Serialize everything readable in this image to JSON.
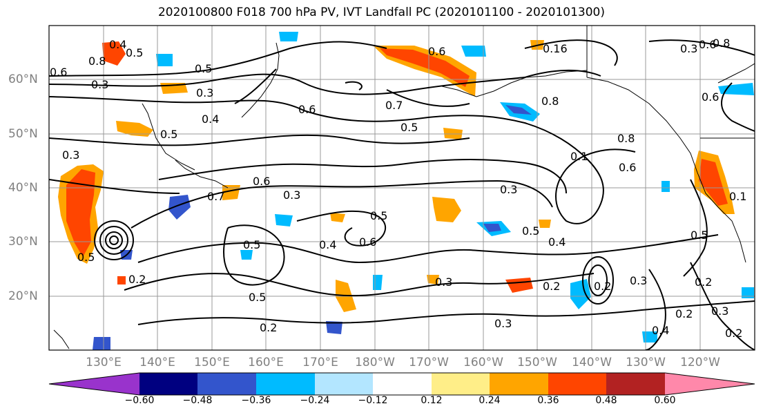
{
  "title": "2020100800 F018 700 hPa PV, IVT Landfall PC (2020101100 - 2020101300)",
  "lat_labels": [
    "60°N",
    "50°N",
    "40°N",
    "30°N",
    "20°N"
  ],
  "lon_labels": [
    "130°E",
    "140°E",
    "150°E",
    "160°E",
    "170°E",
    "180°W",
    "170°W",
    "160°W",
    "150°W",
    "140°W",
    "130°W",
    "120°W"
  ],
  "colorbar": {
    "colors": [
      "#9933cc",
      "#000080",
      "#3355cc",
      "#00bbff",
      "#b3e6ff",
      "#ffffff",
      "#ffee88",
      "#ffa500",
      "#ff4500",
      "#b22222",
      "#ff88aa"
    ],
    "ticks": [
      "−0.60",
      "−0.48",
      "−0.36",
      "−0.24",
      "−0.12",
      "0.12",
      "0.24",
      "0.36",
      "0.48",
      "0.60"
    ]
  },
  "contour_labels": [
    "0.4",
    "0.5",
    "0.6",
    "0.3",
    "0.8",
    "0.5",
    "0.3",
    "0.4",
    "0.5",
    "0.6",
    "0.7",
    "0.8",
    "0.6",
    "0.5",
    "0.8",
    "0.16",
    "0.6",
    "0.6",
    "0.3",
    "0.3",
    "0.7",
    "0.6",
    "0.3",
    "0.3",
    "0.5",
    "0.6",
    "0.5",
    "0.4",
    "0.4",
    "0.5",
    "0.5",
    "0.5",
    "0.2",
    "0.3",
    "0.2",
    "0.3",
    "0.2",
    "0.5",
    "0.2",
    "0.2",
    "0.3",
    "0.4",
    "0.2",
    "0.3",
    "0.2",
    "0.1",
    "0.6",
    "0.1",
    "0.8"
  ]
}
